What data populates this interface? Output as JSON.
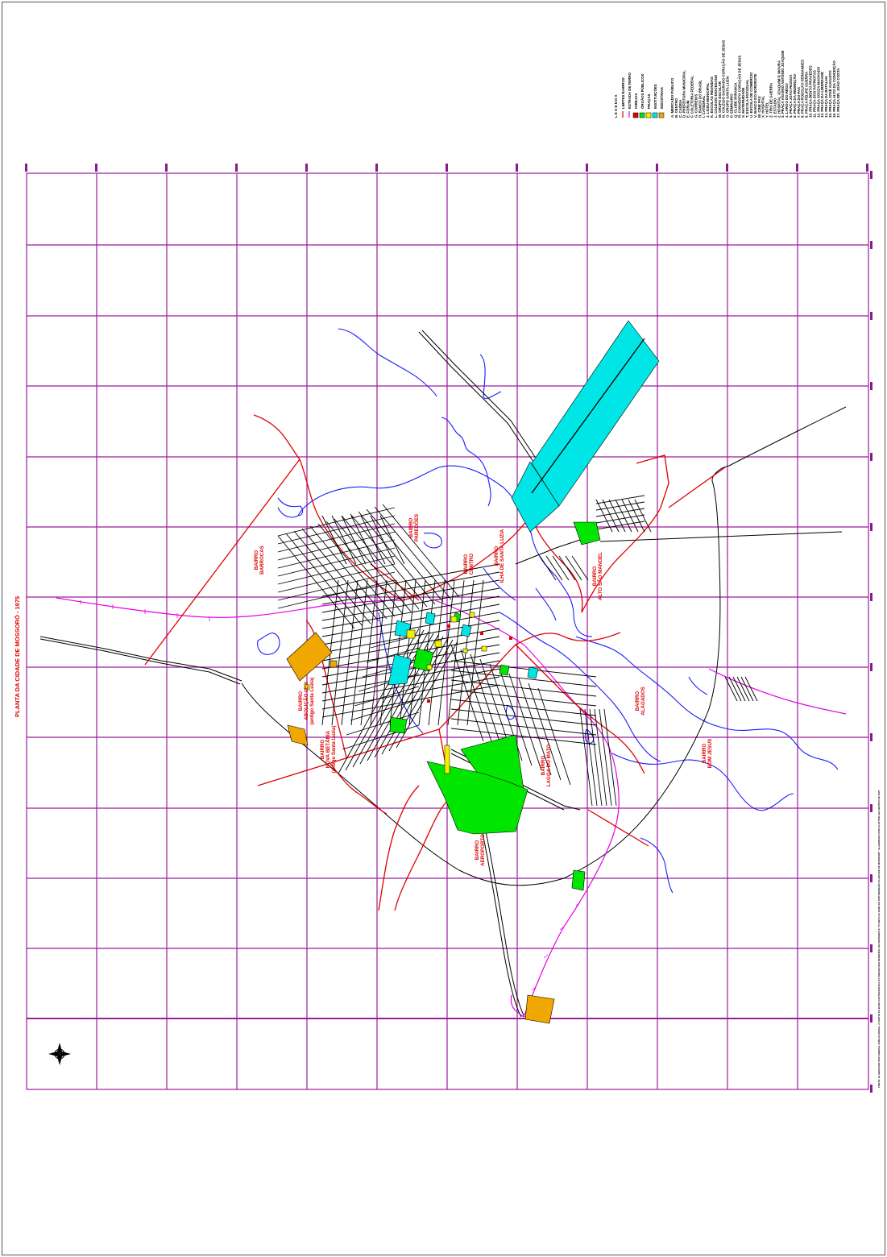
{
  "map": {
    "title": "PLANTA DA CIDADE DE MOSSORÓ - 1975",
    "colors": {
      "grid": "#9b1d9b",
      "limits": "#e00000",
      "railway": "#e600e6",
      "roads": "#000000",
      "rivers": "#1a1aff",
      "churches": "#e00000",
      "public_bodies": "#00e600",
      "squares": "#f2f200",
      "institutions": "#00e5e5",
      "industries": "#f0a800"
    },
    "legend": {
      "title": "L E G E N D A",
      "items": [
        {
          "label": "LIMITES BAIRROS",
          "symbol": "line",
          "color": "#e00000"
        },
        {
          "label": "ESTRADA DE FERRO",
          "symbol": "rail",
          "color": "#e600e6"
        },
        {
          "label": "IGREJAS",
          "symbol": "box",
          "color": "#e00000"
        },
        {
          "label": "ÓRGÃOS PÚBLICOS",
          "symbol": "box",
          "color": "#00e600"
        },
        {
          "label": "PRAÇAS",
          "symbol": "box",
          "color": "#f2f200"
        },
        {
          "label": "INSTITUIÇÕES",
          "symbol": "box",
          "color": "#00e5e5"
        },
        {
          "label": "INDÚSTRIAS",
          "symbol": "box",
          "color": "#f0a800"
        }
      ],
      "places": [
        "A. MERCADO PÚBLICO",
        "B. CENTRO",
        "C. CADEIA",
        "D. PREFEITURA MUNICIPAL",
        "E. FÓRUM",
        "F. COLETORIA FEDERAL",
        "G. CORREIOS",
        "H. BANCO DO BRASIL",
        "I. CATEDRAL",
        "J. LICEU MUNICIPAL",
        "K. ESCOLAS REUNIDAS",
        "L. COLÉGIO DIOCESANO",
        "M. GRUPO ESCOLAR",
        "N. COLÉGIO SAGRADO CORAÇÃO DE JESUS",
        "O. GRUPO SANTA LUZIA",
        "P. SEMINÁRIO",
        "Q. CLUBE IPIRANGA",
        "R. CONVENTO CORAÇÃO DE JESUS",
        "S. MATERNIDADE",
        "T. ESCOLA ESTADUAL",
        "U. ESCOLA DE COMÉRCIO",
        "V. BANCO DO NORDESTE",
        "W. CINE PAX",
        "X. HOSPITAL",
        "Y. HOTEL",
        "Z. TIRO DE GUERRA",
        "1. ESTÁDIO",
        "2. HOSPITAL JOAQUIM P. MOURA",
        "3. PRAÇA VIGÁRIO ANTÔNIO JOAQUIM",
        "4. LARGO DO RÊGO",
        "5. PRAÇA JOÃO PESSOA",
        "6. PRAÇA DA REDENÇÃO",
        "7. PRAÇA DO PAX",
        "8. PRAÇA RODOLFO FERNANDES",
        "9. PRAÇA FELIPE GUERRA",
        "10. PRAÇA BENTO PRAXEDES",
        "11. PRAÇA DOS PATRIOTAS",
        "12. PRAÇA SOUZA MACHADO",
        "13. PRAÇA DA LIBERDADE",
        "14. PRAÇA DA BATALHA",
        "15. PRAÇA JOSÉ AUGUSTO",
        "16. PRAÇA ALTO DA CONCEIÇÃO",
        "17. PRAÇA DR. JOÃO COSTA"
      ]
    },
    "bairros": [
      {
        "l1": "BAIRRO",
        "l2": "BARROCAS"
      },
      {
        "l1": "BAIRRO",
        "l2": "PAREDÕES"
      },
      {
        "l1": "BAIRRO",
        "l2": "CENTRO"
      },
      {
        "l1": "BAIRRO",
        "l2": "ILHA DE SANTA LUZIA"
      },
      {
        "l1": "BAIRRO",
        "l2": "ALTO SÃO MANOEL"
      },
      {
        "l1": "BAIRRO",
        "l2": "ABOLIÇÃO I E II",
        "l3": "(antigo Santa Luzia)"
      },
      {
        "l1": "BAIRRO",
        "l2": "NOVA BETÂNIA",
        "l3": "(antigo Santa Luzia)"
      },
      {
        "l1": "BAIRRO",
        "l2": "LAGOA DO MATO"
      },
      {
        "l1": "BAIRRO",
        "l2": "AEROPORTO"
      },
      {
        "l1": "BAIRRO",
        "l2": "ALAGADOS"
      },
      {
        "l1": "BAIRRO",
        "l2": "BOM JESUS"
      }
    ],
    "note": "FONTE: ELABORADO POR GENIVAL AMÉLIA ROCHA, A PARTIR DA BASE CARTOGRÁFICA DA PREFEITURA MUNICIPAL DE MOSSORÓ E \"PLANTA DA ZONA DE DISTRIBUIÇÃO DA CIDADE DE MOSSORÓ\", ELABORADA POR CLAYTON, EM AGOSTO DE 1975."
  }
}
